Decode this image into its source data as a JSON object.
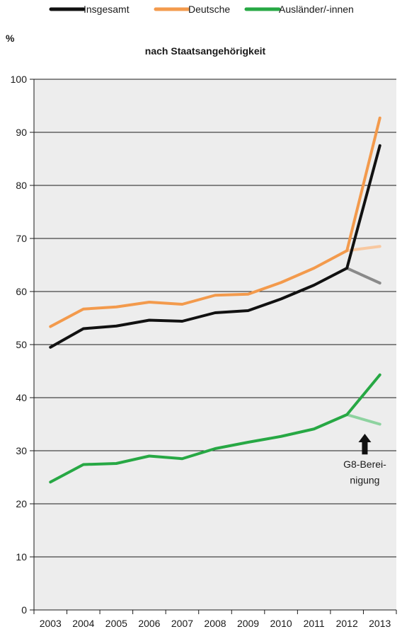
{
  "chart_data": {
    "type": "line",
    "title": "nach Staatsangehörigkeit",
    "ylabel": "%",
    "xlabel": "",
    "ylim": [
      0,
      100
    ],
    "yticks": [
      0,
      10,
      20,
      30,
      40,
      50,
      60,
      70,
      80,
      90,
      100
    ],
    "x": [
      "2003",
      "2004",
      "2005",
      "2006",
      "2007",
      "2008",
      "2009",
      "2010",
      "2011",
      "2012",
      "2013"
    ],
    "grid": "horizontal",
    "legend_position": "top",
    "series": [
      {
        "name": "Insgesamt",
        "color": "#111111",
        "values": [
          49.5,
          53.0,
          53.5,
          54.6,
          54.4,
          56.0,
          56.4,
          58.6,
          61.2,
          64.4,
          87.5
        ],
        "adjusted": {
          "from": "2012",
          "to": "2013",
          "values": [
            64.4,
            61.6
          ],
          "color": "#8a8a8a"
        }
      },
      {
        "name": "Deutsche",
        "color": "#f39a4c",
        "values": [
          53.4,
          56.7,
          57.1,
          58.0,
          57.6,
          59.3,
          59.5,
          61.7,
          64.4,
          67.7,
          92.7
        ],
        "adjusted": {
          "from": "2012",
          "to": "2013",
          "values": [
            67.7,
            68.5
          ],
          "color": "#f8c8a0"
        }
      },
      {
        "name": "Ausländer/-innen",
        "color": "#27a844",
        "values": [
          24.1,
          27.4,
          27.6,
          29.0,
          28.5,
          30.4,
          31.6,
          32.7,
          34.1,
          36.8,
          44.3
        ],
        "adjusted": {
          "from": "2012",
          "to": "2013",
          "values": [
            36.8,
            35.0
          ],
          "color": "#8ed3a0"
        }
      }
    ],
    "annotation": {
      "line1": "G8-Berei-",
      "line2": "nigung",
      "arrow_color": "#111111"
    },
    "background": "#ededed"
  }
}
